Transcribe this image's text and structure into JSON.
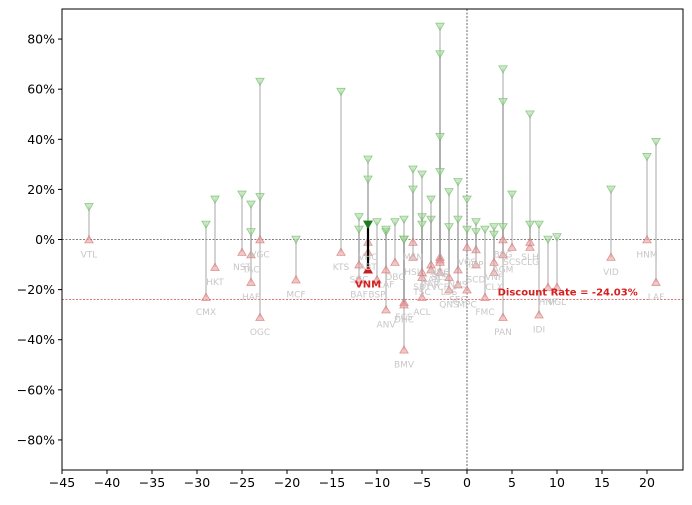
{
  "chart_data": {
    "type": "scatter",
    "title": "",
    "xlabel": "",
    "ylabel": "",
    "xlim": [
      -45,
      24
    ],
    "ylim": [
      -92,
      92
    ],
    "x_ticks": [
      -45,
      -40,
      -35,
      -30,
      -25,
      -20,
      -15,
      -10,
      -5,
      0,
      5,
      10,
      15,
      20
    ],
    "y_ticks": [
      -80,
      -60,
      -40,
      -20,
      0,
      20,
      40,
      60,
      80
    ],
    "y_tick_format": "percent",
    "grid": false,
    "reference_lines": [
      {
        "axis": "y",
        "value": 0,
        "style": "dashed",
        "color": "#000000"
      },
      {
        "axis": "x",
        "value": 0,
        "style": "dashed",
        "color": "#000000"
      },
      {
        "axis": "y",
        "value": -24.03,
        "style": "dashed",
        "color": "#d42020"
      }
    ],
    "discount_label": "Discount Rate = -24.03%",
    "colors": {
      "low_marker": "#e8a0a0",
      "high_marker": "#a8d8a0",
      "stem": "#9a9a9a",
      "highlight_low": "#c81e1e",
      "highlight_high": "#1e7a1e",
      "label": "#c8c8c8"
    },
    "highlight": {
      "label": "VNM",
      "x": -11,
      "low": -12,
      "high": 6
    },
    "points": [
      {
        "label": "VTL",
        "x": -42,
        "low": 0,
        "high": 13
      },
      {
        "label": "CMX",
        "x": -29,
        "low": -23,
        "high": 6
      },
      {
        "label": "HKT",
        "x": -28,
        "low": -11,
        "high": 16
      },
      {
        "label": "NST",
        "x": -25,
        "low": -5,
        "high": 18
      },
      {
        "label": "TAC",
        "x": -24,
        "low": -6,
        "high": 14
      },
      {
        "label": "HAF",
        "x": -24,
        "low": -17,
        "high": 3
      },
      {
        "label": "OGC",
        "x": -23,
        "low": -31,
        "high": 63
      },
      {
        "label": "VGC",
        "x": -23,
        "low": 0,
        "high": 17
      },
      {
        "label": "MCF",
        "x": -19,
        "low": -16,
        "high": 0
      },
      {
        "label": "KTS",
        "x": -14,
        "low": -5,
        "high": 59
      },
      {
        "label": "BAF",
        "x": -12,
        "low": -16,
        "high": 9
      },
      {
        "label": "SGC",
        "x": -12,
        "low": -10,
        "high": 4
      },
      {
        "label": "VHC",
        "x": -11,
        "low": -1,
        "high": 32
      },
      {
        "label": "ABT",
        "x": -11,
        "low": -5,
        "high": 24
      },
      {
        "label": "BSP",
        "x": -10,
        "low": -16,
        "high": 7
      },
      {
        "label": "ANV",
        "x": -9,
        "low": -28,
        "high": 3
      },
      {
        "label": "LAF",
        "x": -9,
        "low": -12,
        "high": 4
      },
      {
        "label": "DBC",
        "x": -8,
        "low": -9,
        "high": 7
      },
      {
        "label": "FCS",
        "x": -7,
        "low": -25,
        "high": 0
      },
      {
        "label": "BMV",
        "x": -7,
        "low": -44,
        "high": 8
      },
      {
        "label": "DHC",
        "x": -7,
        "low": -26,
        "high": 0
      },
      {
        "label": "HSL",
        "x": -6,
        "low": -7,
        "high": 28
      },
      {
        "label": "MSN",
        "x": -6,
        "low": -1,
        "high": 20
      },
      {
        "label": "ACL",
        "x": -5,
        "low": -23,
        "high": 9
      },
      {
        "label": "SBT",
        "x": -5,
        "low": -13,
        "high": 26
      },
      {
        "label": "TSC",
        "x": -5,
        "low": -15,
        "high": 6
      },
      {
        "label": "CAN",
        "x": -4,
        "low": -10,
        "high": 8
      },
      {
        "label": "TAR",
        "x": -4,
        "low": -12,
        "high": 16
      },
      {
        "label": "HNG",
        "x": -3,
        "low": -7,
        "high": 85
      },
      {
        "label": "SAF",
        "x": -3,
        "low": -8,
        "high": 74
      },
      {
        "label": "VCF",
        "x": -3,
        "low": -13,
        "high": 41
      },
      {
        "label": "SLS",
        "x": -3,
        "low": -9,
        "high": 27
      },
      {
        "label": "QNS",
        "x": -2,
        "low": -20,
        "high": 19
      },
      {
        "label": "LSS",
        "x": -2,
        "low": -15,
        "high": 5
      },
      {
        "label": "NHS",
        "x": -1,
        "low": -12,
        "high": 23
      },
      {
        "label": "SEC",
        "x": -1,
        "low": -18,
        "high": 8
      },
      {
        "label": "MPC",
        "x": 0,
        "low": -20,
        "high": 16
      },
      {
        "label": "VCS",
        "x": 0,
        "low": -3,
        "high": 4
      },
      {
        "label": "IDP",
        "x": 1,
        "low": -4,
        "high": 7
      },
      {
        "label": "SCD",
        "x": 1,
        "low": -10,
        "high": 3
      },
      {
        "label": "FMC",
        "x": 2,
        "low": -23,
        "high": 4
      },
      {
        "label": "CLX",
        "x": 3,
        "low": -13,
        "high": 5
      },
      {
        "label": "VNF",
        "x": 3,
        "low": -9,
        "high": 2
      },
      {
        "label": "PAN",
        "x": 4,
        "low": -31,
        "high": 68
      },
      {
        "label": "AGM",
        "x": 4,
        "low": -6,
        "high": 55
      },
      {
        "label": "BSG",
        "x": 4,
        "low": 0,
        "high": 5
      },
      {
        "label": "SCS",
        "x": 5,
        "low": -3,
        "high": 18
      },
      {
        "label": "CLG",
        "x": 7,
        "low": -3,
        "high": 50
      },
      {
        "label": "SLH",
        "x": 7,
        "low": -1,
        "high": 6
      },
      {
        "label": "IDI",
        "x": 8,
        "low": -30,
        "high": 6
      },
      {
        "label": "HNF",
        "x": 9,
        "low": -19,
        "high": 0
      },
      {
        "label": "VGL",
        "x": 10,
        "low": -19,
        "high": 1
      },
      {
        "label": "VID",
        "x": 16,
        "low": -7,
        "high": 20
      },
      {
        "label": "HNM",
        "x": 20,
        "low": 0,
        "high": 33
      },
      {
        "label": "LAF",
        "x": 21,
        "low": -17,
        "high": 39
      }
    ]
  }
}
